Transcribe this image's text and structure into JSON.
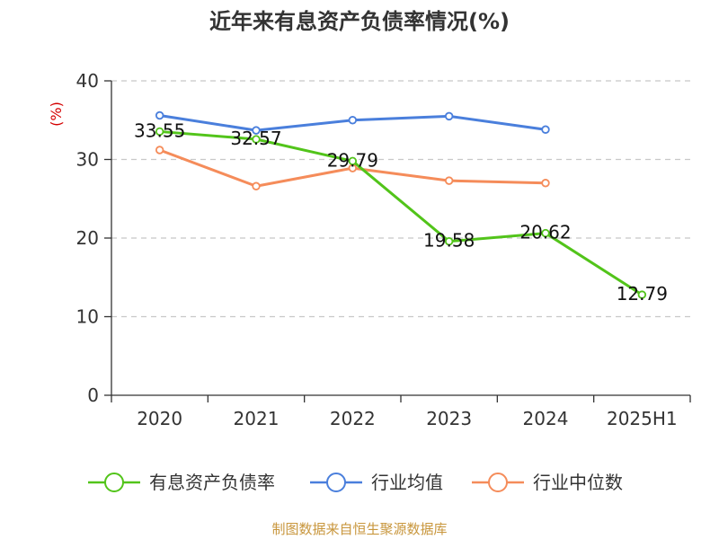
{
  "chart_data": {
    "type": "line",
    "title": "近年来有息资产负债率情况(%)",
    "unit_label": "(%)",
    "categories": [
      "2020",
      "2021",
      "2022",
      "2023",
      "2024",
      "2025H1"
    ],
    "y_ticks": [
      "0",
      "10",
      "20",
      "30",
      "40"
    ],
    "ylim": [
      0,
      40
    ],
    "grid": true,
    "legend_position": "bottom",
    "series": [
      {
        "name": "有息资产负债率",
        "color": "#52c41a",
        "values": [
          33.55,
          32.57,
          29.79,
          19.58,
          20.62,
          12.79
        ],
        "labels": [
          "33.55",
          "32.57",
          "29.79",
          "19.58",
          "20.62",
          "12.79"
        ]
      },
      {
        "name": "行业均值",
        "color": "#4a7fdc",
        "values": [
          35.6,
          33.7,
          35.0,
          35.5,
          33.8,
          null
        ]
      },
      {
        "name": "行业中位数",
        "color": "#f58c5a",
        "values": [
          31.2,
          26.6,
          28.9,
          27.3,
          27.0,
          null
        ]
      }
    ]
  },
  "footer": {
    "source": "制图数据来自恒生聚源数据库"
  }
}
